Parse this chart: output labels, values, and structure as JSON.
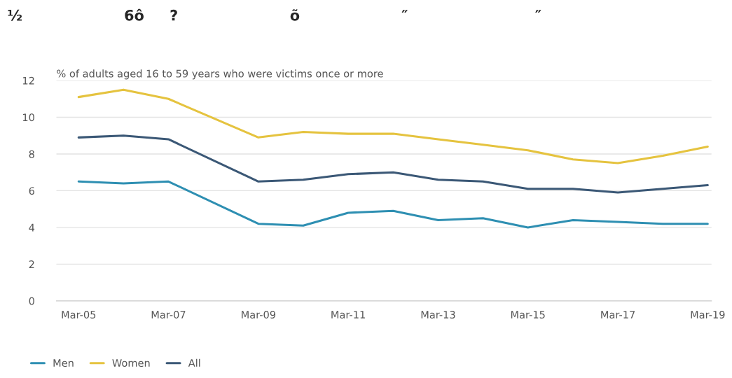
{
  "chart_data": {
    "type": "line",
    "title": "½                    6ô     ?                      õ                    ″                         ″",
    "ylabel": "% of adults aged 16 to 59 years who were victims once or more",
    "x": [
      "2005-03",
      "2006-03",
      "2007-03",
      "2009-03",
      "2010-03",
      "2011-03",
      "2012-03",
      "2013-03",
      "2014-03",
      "2015-03",
      "2016-03",
      "2017-03",
      "2018-03",
      "2019-03"
    ],
    "series": [
      {
        "name": "Men",
        "color": "#2e8fb2",
        "values": [
          6.5,
          6.4,
          6.5,
          4.2,
          4.1,
          4.8,
          4.9,
          4.4,
          4.5,
          4.0,
          4.4,
          4.3,
          4.2,
          4.2
        ]
      },
      {
        "name": "Women",
        "color": "#e5c33f",
        "values": [
          11.1,
          11.5,
          11.0,
          8.9,
          9.2,
          9.1,
          9.1,
          8.8,
          8.5,
          8.2,
          7.7,
          7.5,
          7.9,
          8.4
        ]
      },
      {
        "name": "All",
        "color": "#3b5876",
        "values": [
          8.9,
          9.0,
          8.8,
          6.5,
          6.6,
          6.9,
          7.0,
          6.6,
          6.5,
          6.1,
          6.1,
          5.9,
          6.1,
          6.3
        ]
      }
    ],
    "xlim": [
      "2004-09",
      "2019-04"
    ],
    "xticks": [
      {
        "value": "2005-03",
        "label": "Mar-05"
      },
      {
        "value": "2007-03",
        "label": "Mar-07"
      },
      {
        "value": "2009-03",
        "label": "Mar-09"
      },
      {
        "value": "2011-03",
        "label": "Mar-11"
      },
      {
        "value": "2013-03",
        "label": "Mar-13"
      },
      {
        "value": "2015-03",
        "label": "Mar-15"
      },
      {
        "value": "2017-03",
        "label": "Mar-17"
      },
      {
        "value": "2019-03",
        "label": "Mar-19"
      }
    ],
    "ylim": [
      0,
      12
    ],
    "yticks": [
      0,
      2,
      4,
      6,
      8,
      10,
      12
    ],
    "grid": "y",
    "legend": "bottom left",
    "marker": "none",
    "line_style": "solid"
  }
}
